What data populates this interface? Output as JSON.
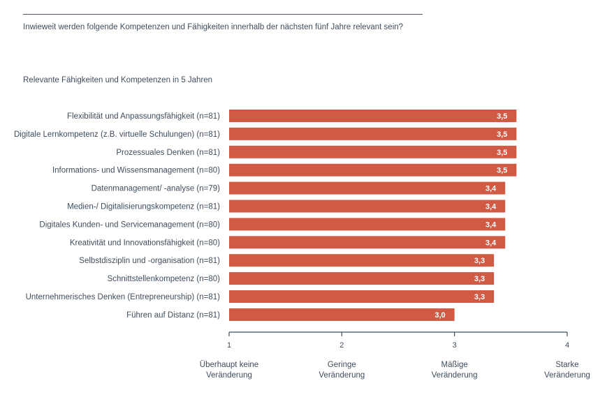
{
  "question": "Inwieweit werden folgende Kompetenzen und Fähigkeiten innerhalb der nächsten fünf Jahre relevant sein?",
  "chart_data": {
    "type": "bar",
    "orientation": "horizontal",
    "title": "Relevante Fähigkeiten und Kompetenzen in 5 Jahren",
    "categories": [
      "Flexibilität und Anpassungsfähigkeit (n=81)",
      "Digitale Lernkompetenz (z.B. virtuelle Schulungen) (n=81)",
      "Prozessuales Denken (n=81)",
      "Informations- und Wissensmanagement (n=80)",
      "Datenmanagement/ -analyse (n=79)",
      "Medien-/ Digitalisierungskompetenz (n=81)",
      "Digitales Kunden- und Servicemanagement (n=80)",
      "Kreativität und Innovationsfähigkeit (n=80)",
      "Selbstdisziplin und -organisation (n=81)",
      "Schnittstellenkompetenz (n=80)",
      "Unternehmerisches Denken (Entrepreneurship) (n=81)",
      "Führen auf Distanz (n=81)"
    ],
    "values": [
      3.55,
      3.55,
      3.55,
      3.55,
      3.45,
      3.45,
      3.45,
      3.45,
      3.35,
      3.35,
      3.35,
      3.0
    ],
    "value_labels": [
      "3,5",
      "3,5",
      "3,5",
      "3,5",
      "3,4",
      "3,4",
      "3,4",
      "3,4",
      "3,3",
      "3,3",
      "3,3",
      "3,0"
    ],
    "xlim": [
      1,
      4
    ],
    "xticks": [
      1,
      2,
      3,
      4
    ],
    "xtick_labels": [
      "1",
      "2",
      "3",
      "4"
    ],
    "scale_labels": [
      [
        "Überhaupt keine",
        "Veränderung"
      ],
      [
        "Geringe",
        "Veränderung"
      ],
      [
        "Mäßige",
        "Veränderung"
      ],
      [
        "Starke",
        "Veränderung"
      ]
    ],
    "bar_color": "#d05a44",
    "grid": false
  }
}
